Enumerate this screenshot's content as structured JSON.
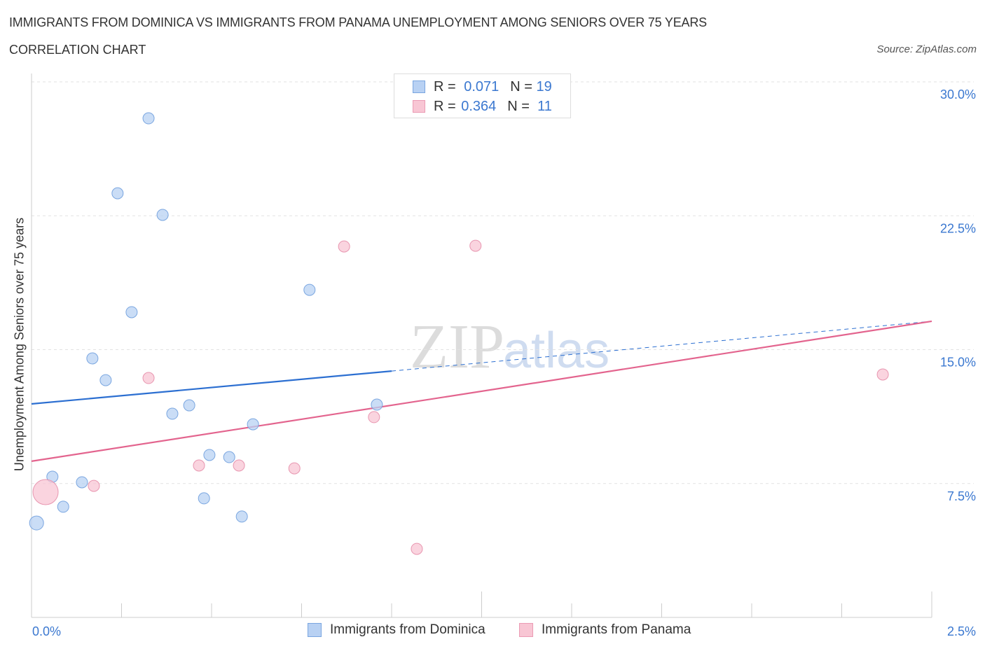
{
  "header": {
    "title": "IMMIGRANTS FROM DOMINICA VS IMMIGRANTS FROM PANAMA UNEMPLOYMENT AMONG SENIORS OVER 75 YEARS",
    "subtitle": "CORRELATION CHART",
    "source": "Source: ZipAtlas.com"
  },
  "legend": {
    "r_label": "R =",
    "n_label": "N =",
    "series": [
      {
        "r": "0.071",
        "n": "19"
      },
      {
        "r": "0.364",
        "n": "11"
      }
    ]
  },
  "watermark": {
    "zip": "ZIP",
    "atlas": "atlas"
  },
  "colors": {
    "blue_fill": "#b8d1f3",
    "blue_line": "#2c6fd1",
    "pink_fill": "#f8c6d4",
    "pink_line": "#e3648e",
    "axis_text": "#3b78d0"
  },
  "chart_data": {
    "type": "scatter",
    "title": "IMMIGRANTS FROM DOMINICA VS IMMIGRANTS FROM PANAMA UNEMPLOYMENT AMONG SENIORS OVER 75 YEARS",
    "xlabel": "",
    "ylabel": "Unemployment Among Seniors over 75 years",
    "xlim": [
      0,
      2.5
    ],
    "ylim": [
      0,
      30
    ],
    "x_tick_labels": [
      "0.0%",
      "2.5%"
    ],
    "y_ticks": [
      7.5,
      15,
      22.5,
      30
    ],
    "y_tick_labels": [
      "7.5%",
      "15.0%",
      "22.5%",
      "30.0%"
    ],
    "grid": true,
    "legend_placement": "bottom",
    "series": [
      {
        "name": "Immigrants from Dominica",
        "points": [
          [
            0.014,
            5.29
          ],
          [
            0.058,
            7.88
          ],
          [
            0.088,
            6.2
          ],
          [
            0.14,
            7.57
          ],
          [
            0.169,
            14.51
          ],
          [
            0.206,
            13.29
          ],
          [
            0.239,
            23.76
          ],
          [
            0.278,
            17.1
          ],
          [
            0.325,
            27.96
          ],
          [
            0.364,
            22.55
          ],
          [
            0.391,
            11.41
          ],
          [
            0.438,
            11.88
          ],
          [
            0.479,
            6.67
          ],
          [
            0.494,
            9.1
          ],
          [
            0.549,
            8.98
          ],
          [
            0.584,
            5.65
          ],
          [
            0.615,
            10.82
          ],
          [
            0.772,
            18.35
          ],
          [
            0.959,
            11.92
          ]
        ],
        "trend": {
          "start": [
            0,
            11.96
          ],
          "solid_end": [
            1.0,
            13.8
          ],
          "end": [
            2.5,
            16.59
          ]
        }
      },
      {
        "name": "Immigrants from Panama",
        "points": [
          [
            0.039,
            7.02,
            "large"
          ],
          [
            0.173,
            7.37
          ],
          [
            0.325,
            13.41
          ],
          [
            0.465,
            8.51
          ],
          [
            0.576,
            8.51
          ],
          [
            0.73,
            8.35
          ],
          [
            0.868,
            20.78
          ],
          [
            0.951,
            11.22
          ],
          [
            1.07,
            3.84
          ],
          [
            1.233,
            20.82
          ],
          [
            2.364,
            13.61
          ]
        ],
        "trend": {
          "start": [
            0,
            8.75
          ],
          "end": [
            2.5,
            16.59
          ]
        }
      }
    ]
  }
}
